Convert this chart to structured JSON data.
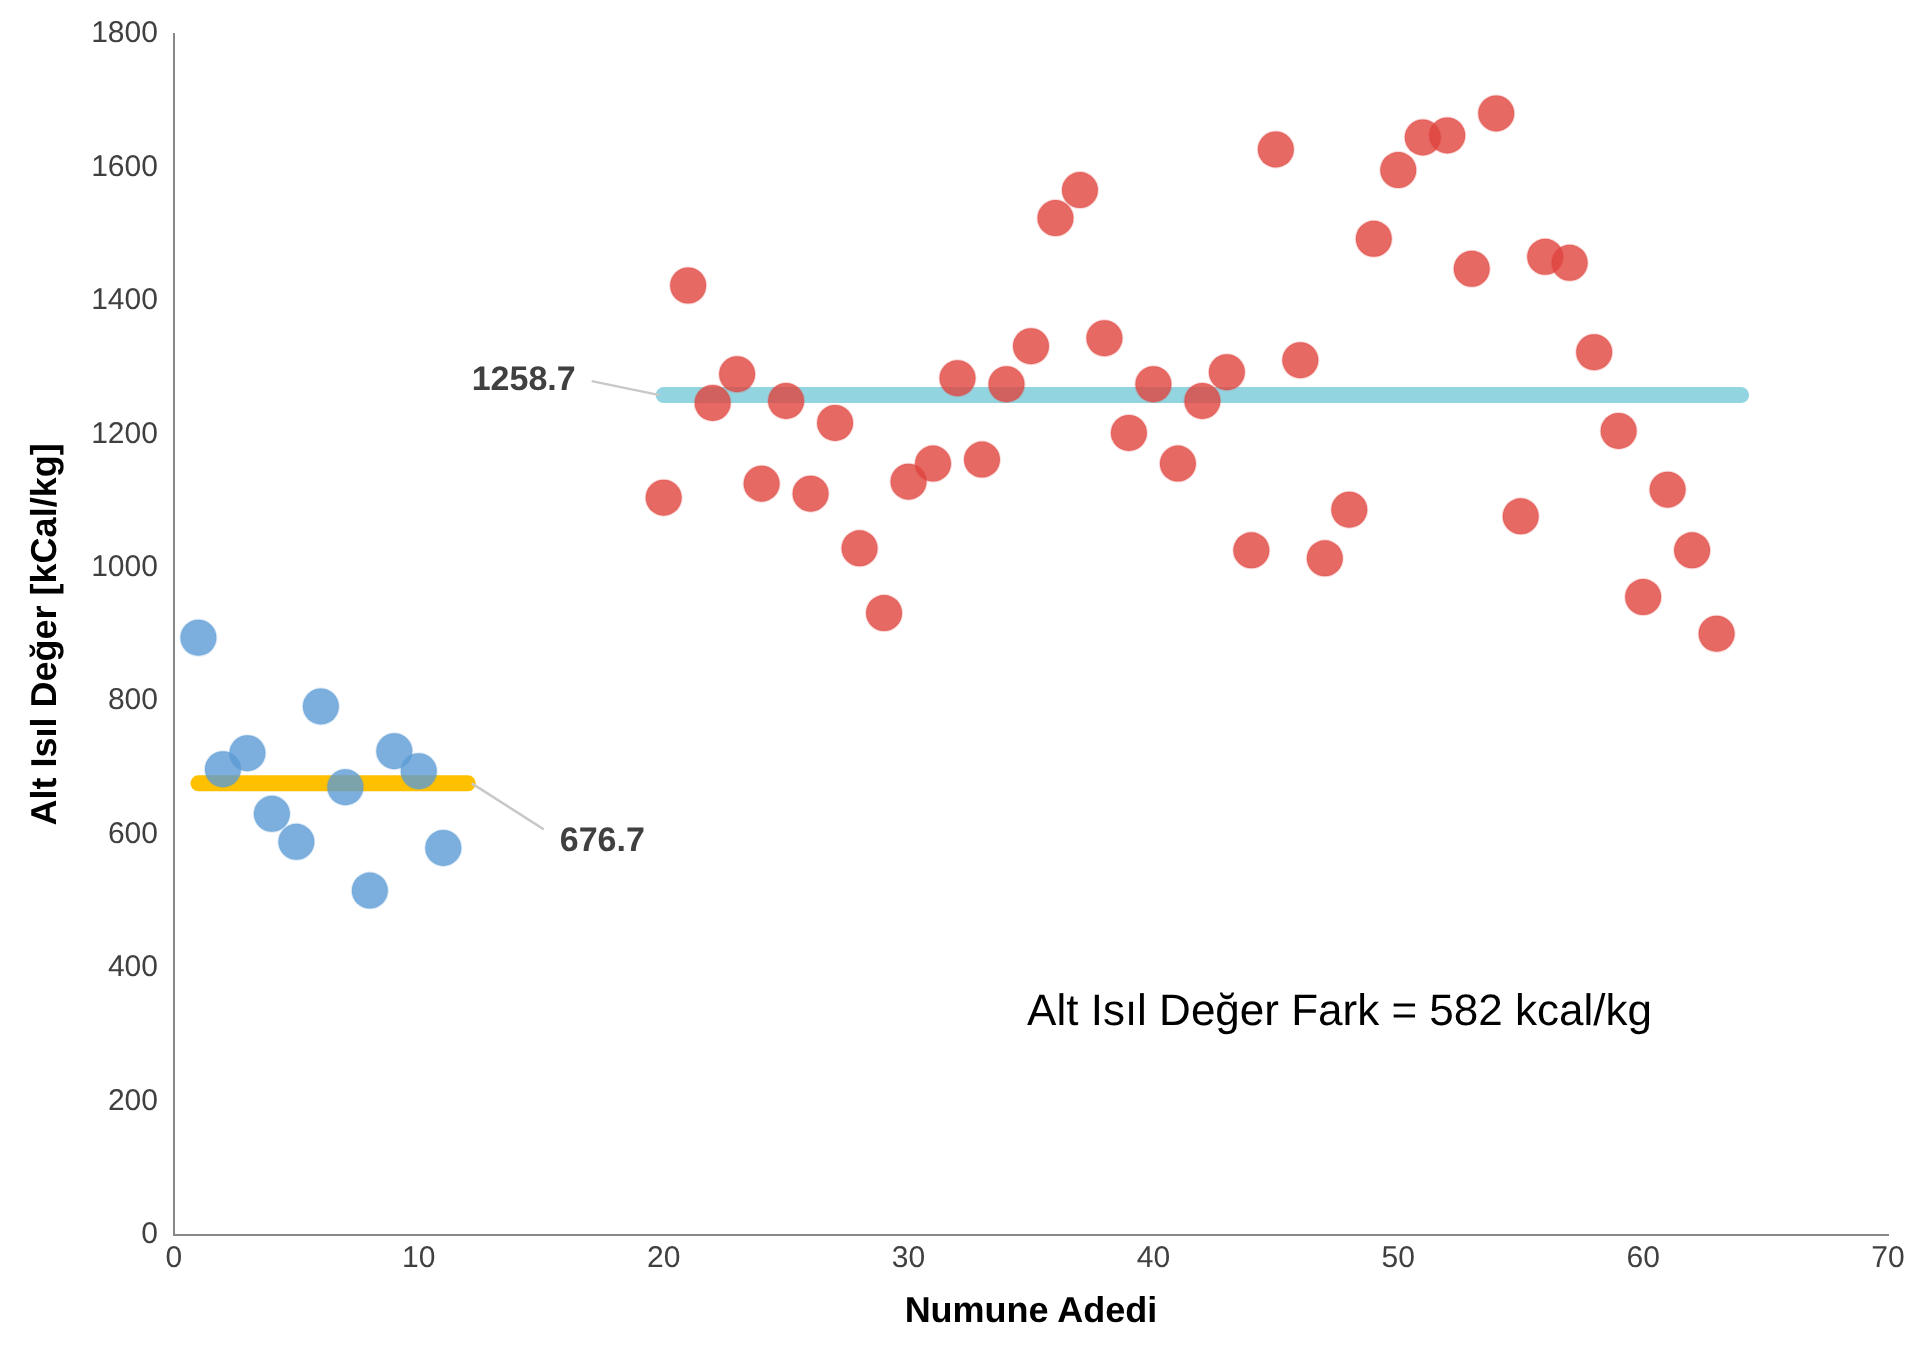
{
  "chart_data": {
    "type": "scatter",
    "xlabel": "Numune Adedi",
    "ylabel": "Alt Isıl Değer [kCal/kg]",
    "xlim": [
      0,
      70
    ],
    "xticks": [
      0,
      10,
      20,
      30,
      40,
      50,
      60,
      70
    ],
    "ylim": [
      0,
      1800
    ],
    "yticks": [
      0,
      200,
      400,
      600,
      800,
      1000,
      1200,
      1400,
      1600,
      1800
    ],
    "grid": false,
    "legend": false,
    "series": [
      {
        "type": "line",
        "marker": "none",
        "color": "#ffc000",
        "x": [
          1,
          12
        ],
        "values": [
          676.7,
          676.7
        ]
      },
      {
        "type": "line",
        "marker": "none",
        "color": "#92d4e0",
        "x": [
          20,
          64
        ],
        "values": [
          1258.7,
          1258.7
        ]
      },
      {
        "marker": "circle",
        "color": "#5b9bd5",
        "x": [
          1,
          2,
          3,
          4,
          5,
          6,
          7,
          8,
          9,
          10,
          11
        ],
        "values": [
          895,
          698,
          722,
          631,
          589,
          792,
          671,
          516,
          725,
          695,
          580
        ]
      },
      {
        "marker": "circle",
        "color": "#e0433d",
        "x": [
          20,
          21,
          22,
          23,
          24,
          25,
          26,
          27,
          28,
          29,
          30,
          31,
          32,
          33,
          34,
          35,
          36,
          37,
          38,
          39,
          40,
          41,
          42,
          43,
          44,
          45,
          46,
          47,
          48,
          49,
          50,
          51,
          52,
          53,
          54,
          55,
          56,
          57,
          58,
          59,
          60,
          61,
          62,
          63
        ],
        "values": [
          1105,
          1423,
          1247,
          1290,
          1126,
          1250,
          1111,
          1217,
          1029,
          932,
          1129,
          1156,
          1284,
          1162,
          1275,
          1332,
          1524,
          1566,
          1344,
          1202,
          1275,
          1156,
          1250,
          1293,
          1026,
          1627,
          1311,
          1014,
          1087,
          1493,
          1596,
          1645,
          1648,
          1448,
          1681,
          1077,
          1466,
          1457,
          1323,
          1205,
          956,
          1117,
          1026,
          901
        ]
      }
    ],
    "annotations": [
      {
        "text": "676.7",
        "x": 12,
        "y": 676.7
      },
      {
        "text": "1258.7",
        "x": 20,
        "y": 1258.7
      },
      "Alt Isıl Değer Fark = 582 kcal/kg"
    ]
  }
}
